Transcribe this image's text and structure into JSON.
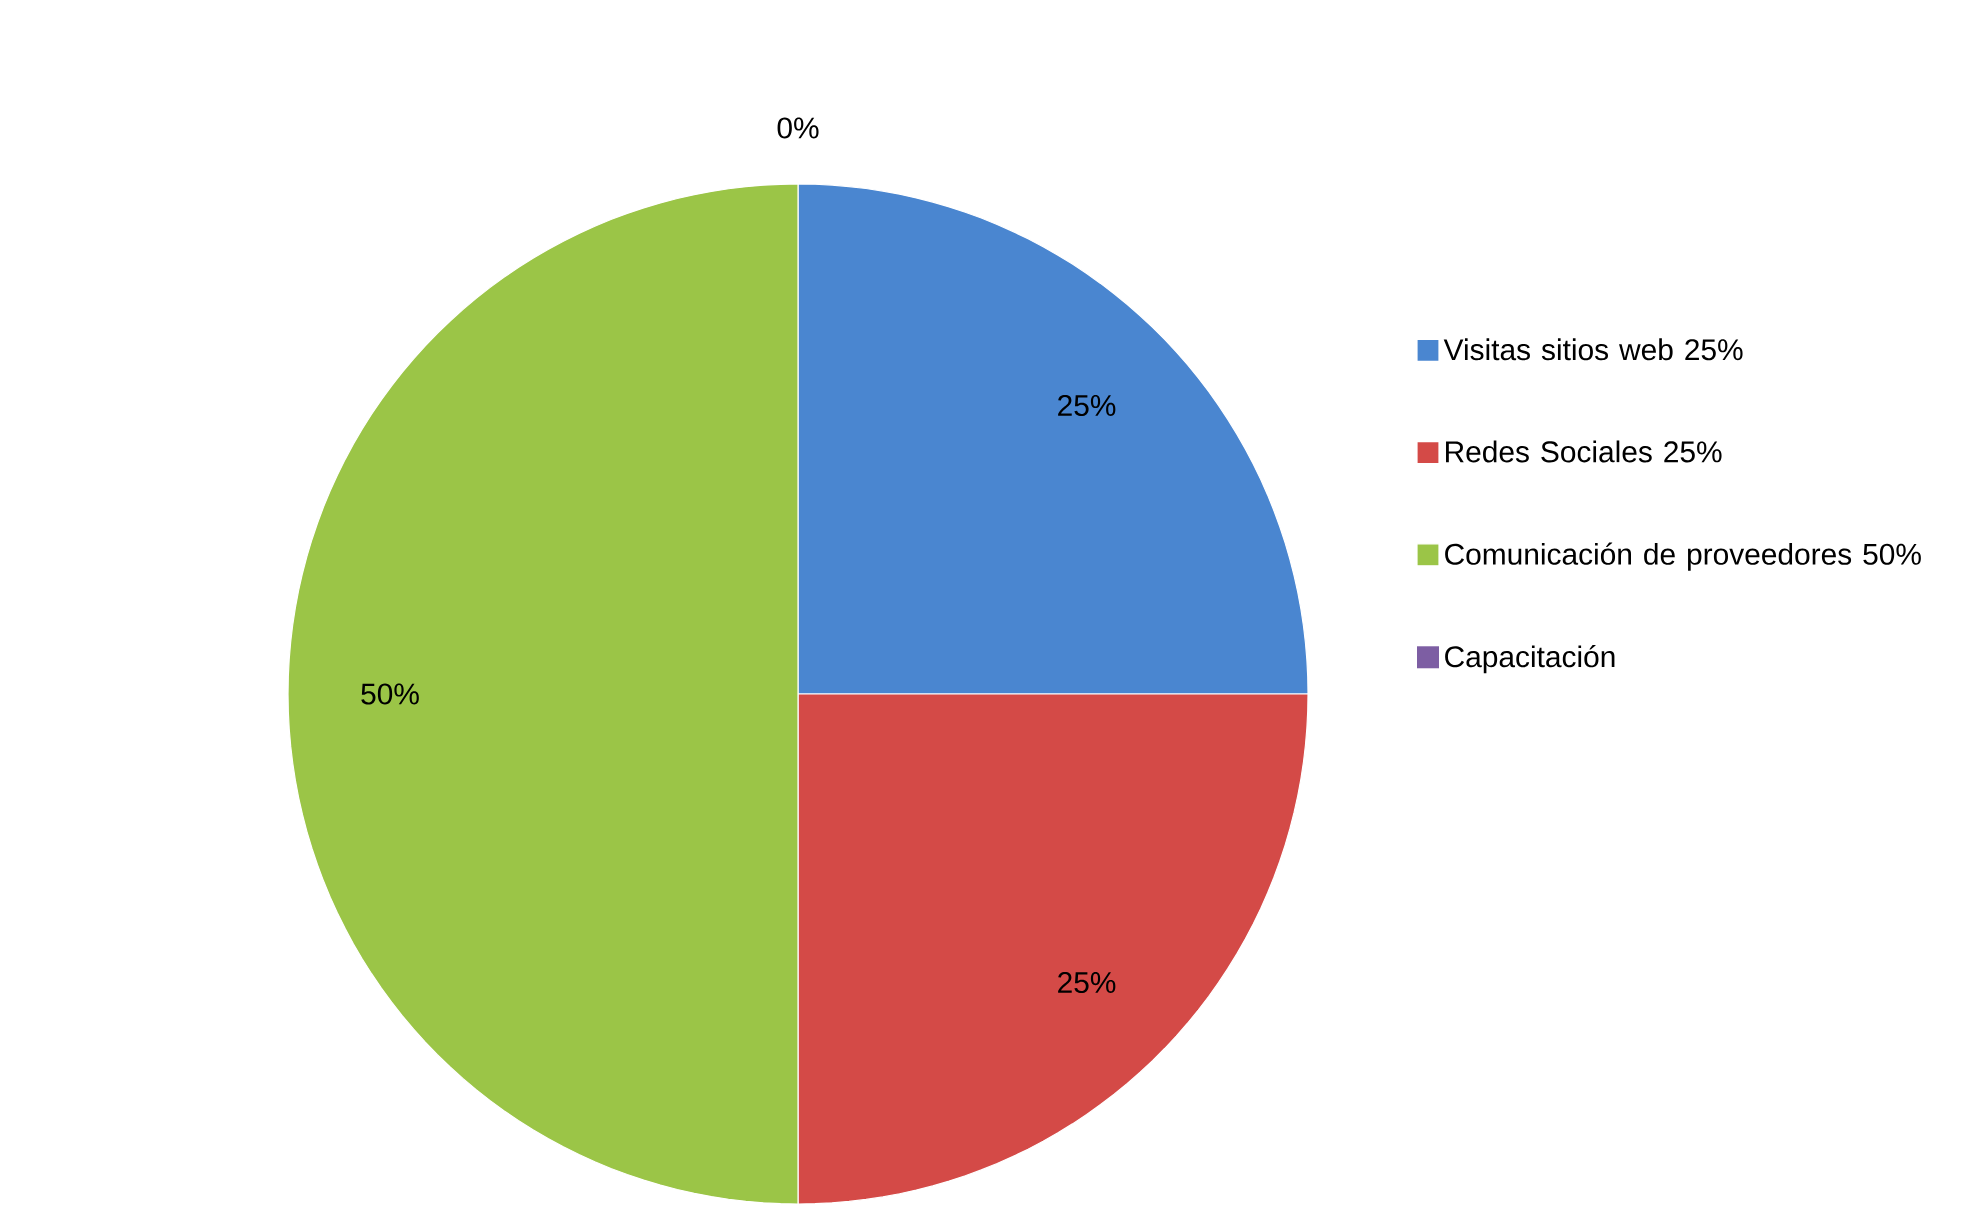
{
  "chart_data": {
    "type": "pie",
    "categories": [
      "Visitas sitios web 25%",
      "Redes Sociales 25%",
      "Comunicación de proveedores 50%",
      "Capacitación"
    ],
    "values": [
      25,
      25,
      50,
      0
    ],
    "value_labels": [
      "25%",
      "25%",
      "50%",
      "0%"
    ],
    "colors": [
      "#4a86d0",
      "#d44a47",
      "#9bc547",
      "#7d5ea3"
    ],
    "legend": "right"
  }
}
